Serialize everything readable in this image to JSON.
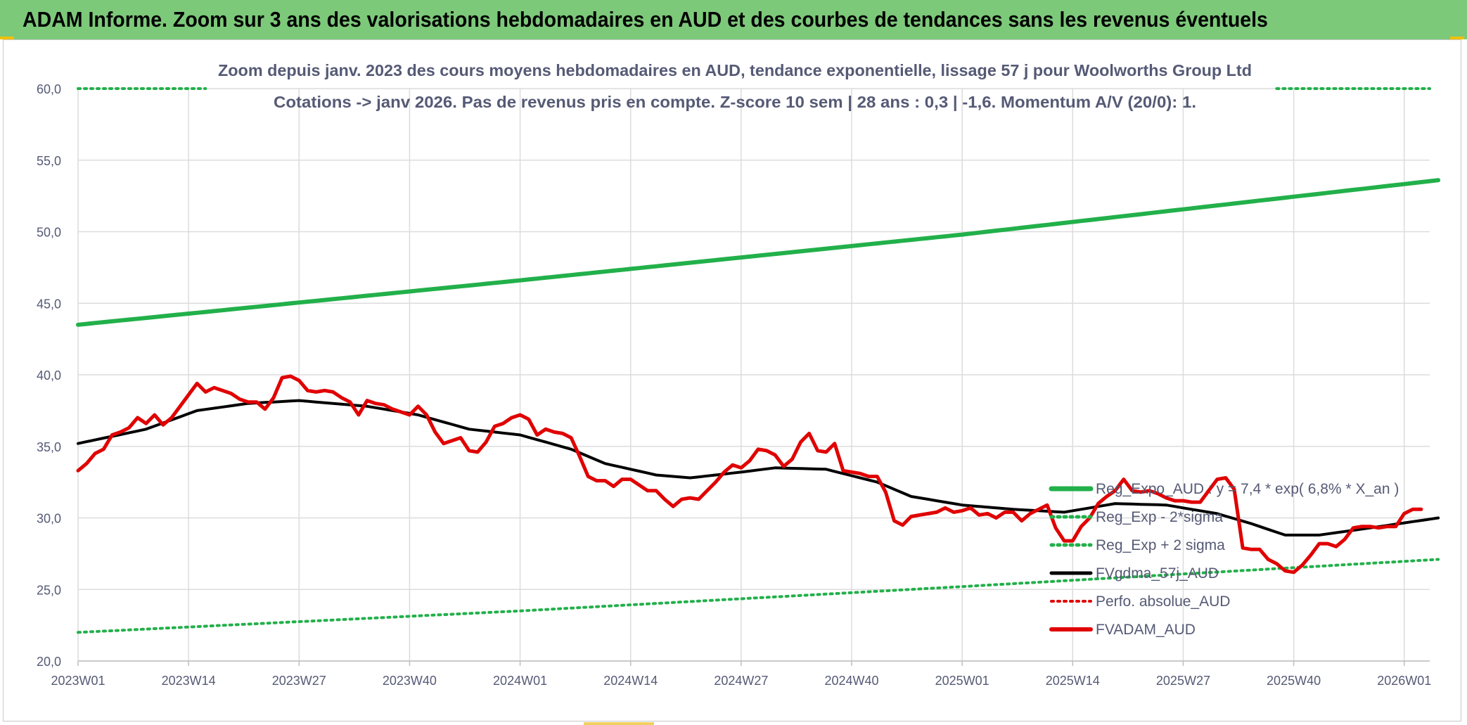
{
  "banner": {
    "title": "ADAM Informe. Zoom sur 3 ans des valorisations hebdomadaires en AUD et des courbes de tendances sans les revenus éventuels"
  },
  "chart_data": {
    "type": "line",
    "title_line1": "Zoom depuis janv. 2023 des cours moyens hebdomadaires en AUD, tendance exponentielle, lissage 57 j pour Woolworths Group Ltd",
    "title_line2": "Cotations -> janv 2026. Pas de revenus pris en compte. Z-score 10 sem | 28 ans : 0,3 | -1,6. Momentum A/V (20/0): 1.",
    "xlabel": "",
    "ylabel": "",
    "ylim": [
      20,
      60
    ],
    "yticks": [
      "20,0",
      "25,0",
      "30,0",
      "35,0",
      "40,0",
      "45,0",
      "50,0",
      "55,0",
      "60,0"
    ],
    "x_count": 160,
    "xtick_labels": [
      "2023W01",
      "2023W14",
      "2023W27",
      "2023W40",
      "2024W01",
      "2024W14",
      "2024W27",
      "2024W40",
      "2025W01",
      "2025W14",
      "2025W27",
      "2025W40",
      "2026W01"
    ],
    "xtick_index": [
      0,
      13,
      26,
      39,
      52,
      65,
      78,
      91,
      104,
      117,
      130,
      143,
      156
    ],
    "grid": true,
    "legend_position": "bottom-right",
    "series": [
      {
        "name": "Reg_Expo_AUD : y = 7,4 * exp( 6,8% *  X_an )",
        "color": "#22b04a",
        "style": "solid",
        "keypoints": [
          [
            0,
            43.5
          ],
          [
            52,
            46.6
          ],
          [
            104,
            49.8
          ],
          [
            160,
            53.6
          ]
        ]
      },
      {
        "name": "Reg_Exp - 2*sigma",
        "color": "#22b04a",
        "style": "dotted",
        "keypoints": [
          [
            0,
            22.0
          ],
          [
            52,
            23.5
          ],
          [
            104,
            25.2
          ],
          [
            160,
            27.1
          ]
        ]
      },
      {
        "name": "Reg_Exp + 2 sigma",
        "color": "#22b04a",
        "style": "dotted",
        "keypoints": [
          [
            0,
            60.0
          ],
          [
            15,
            60.0
          ],
          [
            141,
            60.0
          ],
          [
            160,
            60.0
          ]
        ]
      },
      {
        "name": "FVgdma_57j_AUD",
        "color": "#000000",
        "style": "solid",
        "keypoints": [
          [
            0,
            35.2
          ],
          [
            8,
            36.2
          ],
          [
            14,
            37.5
          ],
          [
            20,
            38.0
          ],
          [
            26,
            38.2
          ],
          [
            34,
            37.8
          ],
          [
            40,
            37.2
          ],
          [
            46,
            36.2
          ],
          [
            52,
            35.8
          ],
          [
            58,
            34.8
          ],
          [
            62,
            33.8
          ],
          [
            68,
            33.0
          ],
          [
            72,
            32.8
          ],
          [
            78,
            33.2
          ],
          [
            82,
            33.5
          ],
          [
            88,
            33.4
          ],
          [
            94,
            32.5
          ],
          [
            98,
            31.5
          ],
          [
            104,
            30.9
          ],
          [
            110,
            30.6
          ],
          [
            116,
            30.4
          ],
          [
            122,
            31.0
          ],
          [
            128,
            30.9
          ],
          [
            134,
            30.3
          ],
          [
            138,
            29.6
          ],
          [
            142,
            28.8
          ],
          [
            146,
            28.8
          ],
          [
            152,
            29.3
          ],
          [
            160,
            30.0
          ]
        ]
      },
      {
        "name": "Perfo. absolue_AUD",
        "color": "#e00000",
        "style": "dotted",
        "keypoints": []
      },
      {
        "name": "FVADAM_AUD",
        "color": "#e00000",
        "style": "solid",
        "keypoints": [
          [
            0,
            33.3
          ],
          [
            1,
            33.8
          ],
          [
            2,
            34.5
          ],
          [
            3,
            34.8
          ],
          [
            4,
            35.8
          ],
          [
            5,
            36.0
          ],
          [
            6,
            36.3
          ],
          [
            7,
            37.0
          ],
          [
            8,
            36.6
          ],
          [
            9,
            37.2
          ],
          [
            10,
            36.5
          ],
          [
            11,
            37.0
          ],
          [
            12,
            37.8
          ],
          [
            13,
            38.6
          ],
          [
            14,
            39.4
          ],
          [
            15,
            38.8
          ],
          [
            16,
            39.1
          ],
          [
            17,
            38.9
          ],
          [
            18,
            38.7
          ],
          [
            19,
            38.3
          ],
          [
            20,
            38.1
          ],
          [
            21,
            38.1
          ],
          [
            22,
            37.6
          ],
          [
            23,
            38.4
          ],
          [
            24,
            39.8
          ],
          [
            25,
            39.9
          ],
          [
            26,
            39.6
          ],
          [
            27,
            38.9
          ],
          [
            28,
            38.8
          ],
          [
            29,
            38.9
          ],
          [
            30,
            38.8
          ],
          [
            31,
            38.4
          ],
          [
            32,
            38.1
          ],
          [
            33,
            37.2
          ],
          [
            34,
            38.2
          ],
          [
            35,
            38.0
          ],
          [
            36,
            37.9
          ],
          [
            37,
            37.6
          ],
          [
            38,
            37.4
          ],
          [
            39,
            37.2
          ],
          [
            40,
            37.8
          ],
          [
            41,
            37.2
          ],
          [
            42,
            36.0
          ],
          [
            43,
            35.2
          ],
          [
            44,
            35.4
          ],
          [
            45,
            35.6
          ],
          [
            46,
            34.7
          ],
          [
            47,
            34.6
          ],
          [
            48,
            35.3
          ],
          [
            49,
            36.4
          ],
          [
            50,
            36.6
          ],
          [
            51,
            37.0
          ],
          [
            52,
            37.2
          ],
          [
            53,
            36.9
          ],
          [
            54,
            35.8
          ],
          [
            55,
            36.2
          ],
          [
            56,
            36.0
          ],
          [
            57,
            35.9
          ],
          [
            58,
            35.6
          ],
          [
            59,
            34.3
          ],
          [
            60,
            32.9
          ],
          [
            61,
            32.6
          ],
          [
            62,
            32.6
          ],
          [
            63,
            32.2
          ],
          [
            64,
            32.7
          ],
          [
            65,
            32.7
          ],
          [
            66,
            32.3
          ],
          [
            67,
            31.9
          ],
          [
            68,
            31.9
          ],
          [
            69,
            31.3
          ],
          [
            70,
            30.8
          ],
          [
            71,
            31.3
          ],
          [
            72,
            31.4
          ],
          [
            73,
            31.3
          ],
          [
            74,
            31.9
          ],
          [
            75,
            32.5
          ],
          [
            76,
            33.2
          ],
          [
            77,
            33.7
          ],
          [
            78,
            33.5
          ],
          [
            79,
            34.0
          ],
          [
            80,
            34.8
          ],
          [
            81,
            34.7
          ],
          [
            82,
            34.4
          ],
          [
            83,
            33.6
          ],
          [
            84,
            34.1
          ],
          [
            85,
            35.3
          ],
          [
            86,
            35.9
          ],
          [
            87,
            34.7
          ],
          [
            88,
            34.6
          ],
          [
            89,
            35.2
          ],
          [
            90,
            33.3
          ],
          [
            91,
            33.2
          ],
          [
            92,
            33.1
          ],
          [
            93,
            32.9
          ],
          [
            94,
            32.9
          ],
          [
            95,
            31.8
          ],
          [
            96,
            29.8
          ],
          [
            97,
            29.5
          ],
          [
            98,
            30.1
          ],
          [
            99,
            30.2
          ],
          [
            100,
            30.3
          ],
          [
            101,
            30.4
          ],
          [
            102,
            30.7
          ],
          [
            103,
            30.4
          ],
          [
            104,
            30.5
          ],
          [
            105,
            30.7
          ],
          [
            106,
            30.2
          ],
          [
            107,
            30.3
          ],
          [
            108,
            30.0
          ],
          [
            109,
            30.4
          ],
          [
            110,
            30.4
          ],
          [
            111,
            29.8
          ],
          [
            112,
            30.3
          ],
          [
            113,
            30.6
          ],
          [
            114,
            30.9
          ],
          [
            115,
            29.3
          ],
          [
            116,
            28.4
          ],
          [
            117,
            28.4
          ],
          [
            118,
            29.4
          ],
          [
            119,
            30.0
          ],
          [
            120,
            31.0
          ],
          [
            121,
            31.5
          ],
          [
            122,
            31.9
          ],
          [
            123,
            32.7
          ],
          [
            124,
            31.9
          ],
          [
            125,
            31.8
          ],
          [
            126,
            31.9
          ],
          [
            127,
            31.7
          ],
          [
            128,
            31.4
          ],
          [
            129,
            31.2
          ],
          [
            130,
            31.2
          ],
          [
            131,
            31.1
          ],
          [
            132,
            31.1
          ],
          [
            133,
            31.9
          ],
          [
            134,
            32.7
          ],
          [
            135,
            32.8
          ],
          [
            136,
            32.0
          ],
          [
            137,
            27.9
          ],
          [
            138,
            27.8
          ],
          [
            139,
            27.8
          ],
          [
            140,
            27.1
          ],
          [
            141,
            26.8
          ],
          [
            142,
            26.3
          ],
          [
            143,
            26.2
          ],
          [
            144,
            26.7
          ],
          [
            145,
            27.4
          ],
          [
            146,
            28.2
          ],
          [
            147,
            28.2
          ],
          [
            148,
            28.0
          ],
          [
            149,
            28.5
          ],
          [
            150,
            29.3
          ],
          [
            151,
            29.4
          ],
          [
            152,
            29.4
          ],
          [
            153,
            29.3
          ],
          [
            154,
            29.4
          ],
          [
            155,
            29.4
          ],
          [
            156,
            30.3
          ],
          [
            157,
            30.6
          ],
          [
            158,
            30.6
          ]
        ]
      }
    ]
  }
}
